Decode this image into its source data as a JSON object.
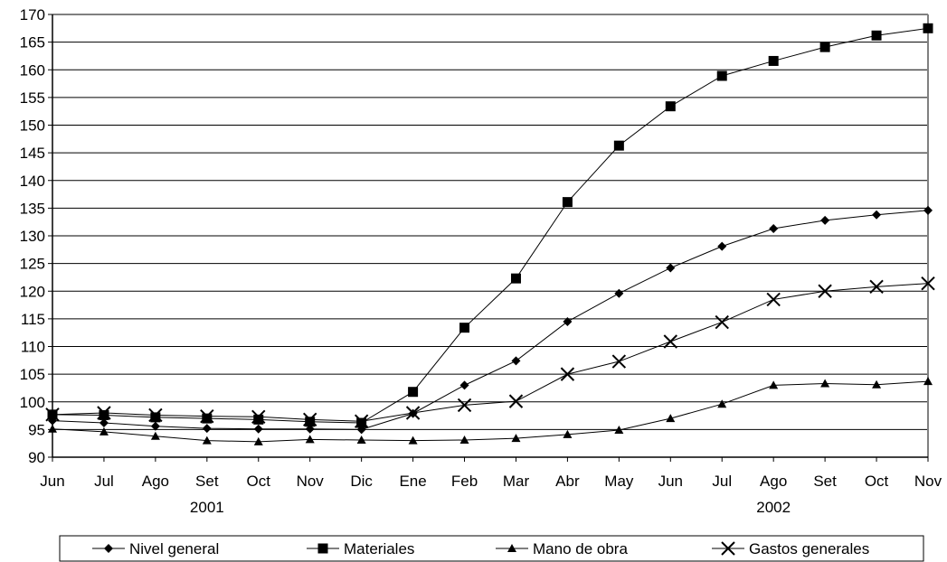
{
  "chart_data": {
    "type": "line",
    "categories": [
      "Jun",
      "Jul",
      "Ago",
      "Set",
      "Oct",
      "Nov",
      "Dic",
      "Ene",
      "Feb",
      "Mar",
      "Abr",
      "May",
      "Jun",
      "Jul",
      "Ago",
      "Set",
      "Oct",
      "Nov"
    ],
    "year_labels": [
      {
        "label": "2001",
        "category_index": 3
      },
      {
        "label": "2002",
        "category_index": 14
      }
    ],
    "ylim": [
      90,
      170
    ],
    "y_ticks": [
      90,
      95,
      100,
      105,
      110,
      115,
      120,
      125,
      130,
      135,
      140,
      145,
      150,
      155,
      160,
      165,
      170
    ],
    "grid": true,
    "legend_position": "bottom",
    "series": [
      {
        "name": "Nivel general",
        "marker": "diamond",
        "values": [
          96.6,
          96.2,
          95.6,
          95.2,
          95.1,
          95.1,
          95.0,
          97.9,
          103.0,
          107.4,
          114.5,
          119.6,
          124.2,
          128.1,
          131.3,
          132.8,
          133.8,
          134.6
        ]
      },
      {
        "name": "Materiales",
        "marker": "square",
        "values": [
          97.7,
          97.6,
          97.2,
          97.0,
          96.8,
          96.4,
          96.2,
          101.8,
          113.4,
          122.3,
          136.1,
          146.3,
          153.4,
          158.9,
          161.6,
          164.1,
          166.2,
          167.5
        ]
      },
      {
        "name": "Mano de obra",
        "marker": "triangle",
        "values": [
          95.1,
          94.6,
          93.8,
          93.0,
          92.8,
          93.2,
          93.1,
          93.0,
          93.1,
          93.4,
          94.1,
          94.9,
          97.0,
          99.6,
          103.0,
          103.3,
          103.1,
          103.7
        ]
      },
      {
        "name": "Gastos generales",
        "marker": "x",
        "values": [
          97.7,
          98.0,
          97.6,
          97.4,
          97.3,
          96.8,
          96.5,
          98.0,
          99.4,
          100.1,
          105.0,
          107.3,
          110.9,
          114.4,
          118.5,
          120.0,
          120.8,
          121.4
        ]
      }
    ],
    "colors": {
      "line": "#000000",
      "grid": "#000000",
      "plot_border": "#808080",
      "background": "#ffffff"
    }
  }
}
